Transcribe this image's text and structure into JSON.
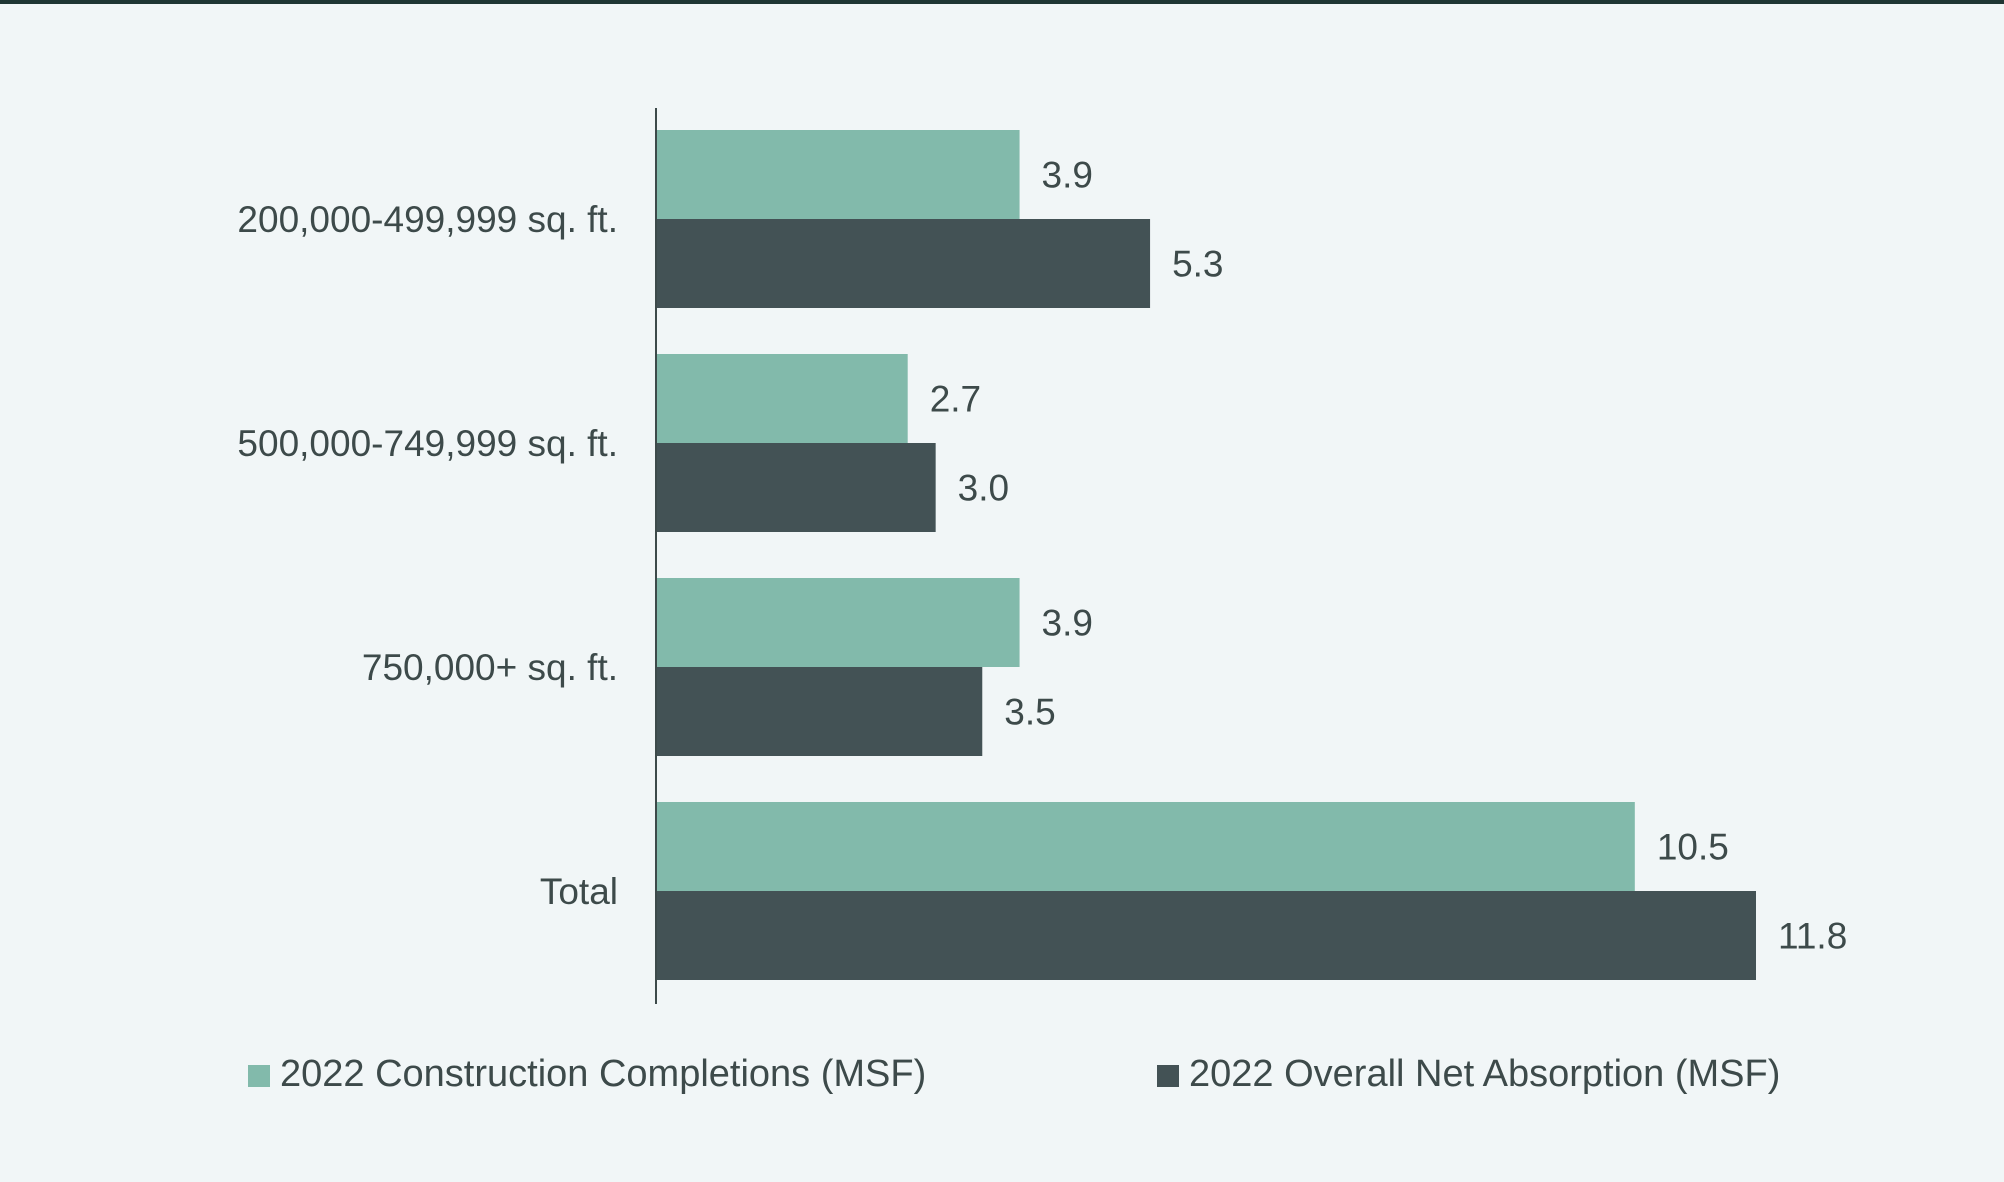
{
  "chart_data": {
    "type": "bar",
    "orientation": "horizontal",
    "title": "",
    "xlabel": "",
    "ylabel": "",
    "categories": [
      "200,000-499,999 sq. ft.",
      "500,000-749,999 sq. ft.",
      "750,000+ sq. ft.",
      "Total"
    ],
    "series": [
      {
        "name": "2022 Construction Completions (MSF)",
        "color": "#82baab",
        "values": [
          3.9,
          2.7,
          3.9,
          10.5
        ],
        "labels": [
          "3.9",
          "2.7",
          "3.9",
          "10.5"
        ]
      },
      {
        "name": "2022 Overall Net Absorption (MSF)",
        "color": "#435255",
        "values": [
          5.3,
          3.0,
          3.5,
          11.8
        ],
        "labels": [
          "5.3",
          "3.0",
          "3.5",
          "11.8"
        ]
      }
    ],
    "xlim": [
      0,
      11.8
    ],
    "grid": false,
    "legend_position": "bottom"
  }
}
